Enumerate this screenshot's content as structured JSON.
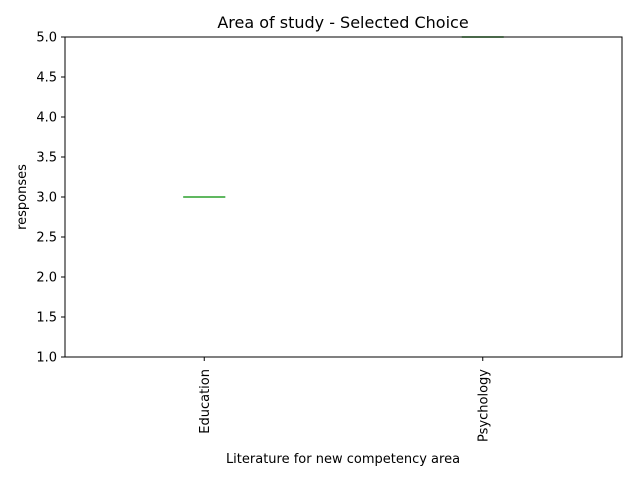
{
  "chart_data": {
    "type": "box",
    "title": "Area of study - Selected Choice",
    "xlabel": "Literature for new competency area",
    "ylabel": "responses",
    "categories": [
      "Education",
      "Psychology"
    ],
    "values": [
      3.0,
      5.0
    ],
    "ylim": [
      1.0,
      5.0
    ],
    "yticks": [
      "1.0",
      "1.5",
      "2.0",
      "2.5",
      "3.0",
      "3.5",
      "4.0",
      "4.5",
      "5.0"
    ],
    "grid": false,
    "colors": {
      "median": "#2ca02c",
      "box": "#1f77b4",
      "axes": "#000000"
    }
  }
}
